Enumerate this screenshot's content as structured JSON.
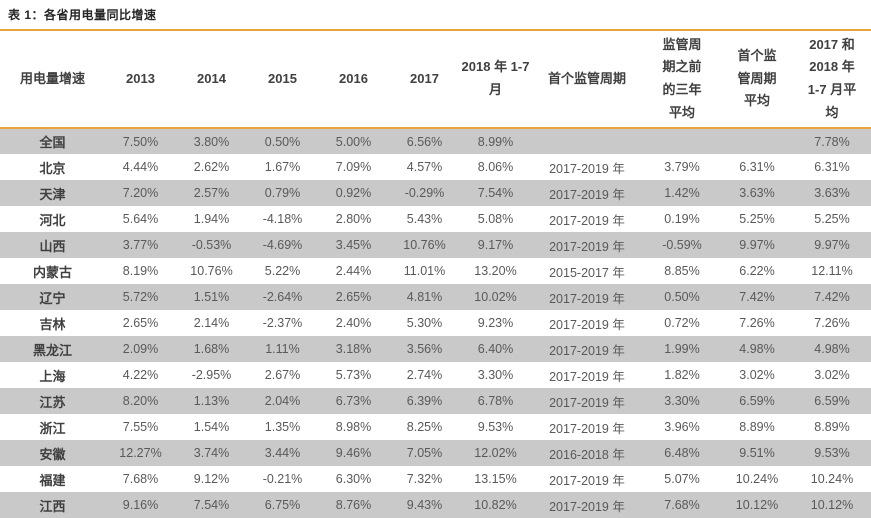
{
  "title": "表 1：各省用电量同比增速",
  "colors": {
    "accent": "#E8A33D",
    "stripe": "#C9C9C9",
    "header_text": "#404040",
    "data_text": "#595959"
  },
  "table": {
    "columns": [
      "用电量增速",
      "2013",
      "2014",
      "2015",
      "2016",
      "2017",
      "2018 年 1-7 月",
      "首个监管周期",
      "监管周期之前的三年平均",
      "首个监管周期平均",
      "2017 和 2018 年 1-7 月平均"
    ],
    "rows": [
      [
        "全国",
        "7.50%",
        "3.80%",
        "0.50%",
        "5.00%",
        "6.56%",
        "8.99%",
        "",
        "",
        "",
        "7.78%"
      ],
      [
        "北京",
        "4.44%",
        "2.62%",
        "1.67%",
        "7.09%",
        "4.57%",
        "8.06%",
        "2017-2019 年",
        "3.79%",
        "6.31%",
        "6.31%"
      ],
      [
        "天津",
        "7.20%",
        "2.57%",
        "0.79%",
        "0.92%",
        "-0.29%",
        "7.54%",
        "2017-2019 年",
        "1.42%",
        "3.63%",
        "3.63%"
      ],
      [
        "河北",
        "5.64%",
        "1.94%",
        "-4.18%",
        "2.80%",
        "5.43%",
        "5.08%",
        "2017-2019 年",
        "0.19%",
        "5.25%",
        "5.25%"
      ],
      [
        "山西",
        "3.77%",
        "-0.53%",
        "-4.69%",
        "3.45%",
        "10.76%",
        "9.17%",
        "2017-2019 年",
        "-0.59%",
        "9.97%",
        "9.97%"
      ],
      [
        "内蒙古",
        "8.19%",
        "10.76%",
        "5.22%",
        "2.44%",
        "11.01%",
        "13.20%",
        "2015-2017 年",
        "8.85%",
        "6.22%",
        "12.11%"
      ],
      [
        "辽宁",
        "5.72%",
        "1.51%",
        "-2.64%",
        "2.65%",
        "4.81%",
        "10.02%",
        "2017-2019 年",
        "0.50%",
        "7.42%",
        "7.42%"
      ],
      [
        "吉林",
        "2.65%",
        "2.14%",
        "-2.37%",
        "2.40%",
        "5.30%",
        "9.23%",
        "2017-2019 年",
        "0.72%",
        "7.26%",
        "7.26%"
      ],
      [
        "黑龙江",
        "2.09%",
        "1.68%",
        "1.11%",
        "3.18%",
        "3.56%",
        "6.40%",
        "2017-2019 年",
        "1.99%",
        "4.98%",
        "4.98%"
      ],
      [
        "上海",
        "4.22%",
        "-2.95%",
        "2.67%",
        "5.73%",
        "2.74%",
        "3.30%",
        "2017-2019 年",
        "1.82%",
        "3.02%",
        "3.02%"
      ],
      [
        "江苏",
        "8.20%",
        "1.13%",
        "2.04%",
        "6.73%",
        "6.39%",
        "6.78%",
        "2017-2019 年",
        "3.30%",
        "6.59%",
        "6.59%"
      ],
      [
        "浙江",
        "7.55%",
        "1.54%",
        "1.35%",
        "8.98%",
        "8.25%",
        "9.53%",
        "2017-2019 年",
        "3.96%",
        "8.89%",
        "8.89%"
      ],
      [
        "安徽",
        "12.27%",
        "3.74%",
        "3.44%",
        "9.46%",
        "7.05%",
        "12.02%",
        "2016-2018 年",
        "6.48%",
        "9.51%",
        "9.53%"
      ],
      [
        "福建",
        "7.68%",
        "9.12%",
        "-0.21%",
        "6.30%",
        "7.32%",
        "13.15%",
        "2017-2019 年",
        "5.07%",
        "10.24%",
        "10.24%"
      ],
      [
        "江西",
        "9.16%",
        "7.54%",
        "6.75%",
        "8.76%",
        "9.43%",
        "10.82%",
        "2017-2019 年",
        "7.68%",
        "10.12%",
        "10.12%"
      ]
    ]
  }
}
